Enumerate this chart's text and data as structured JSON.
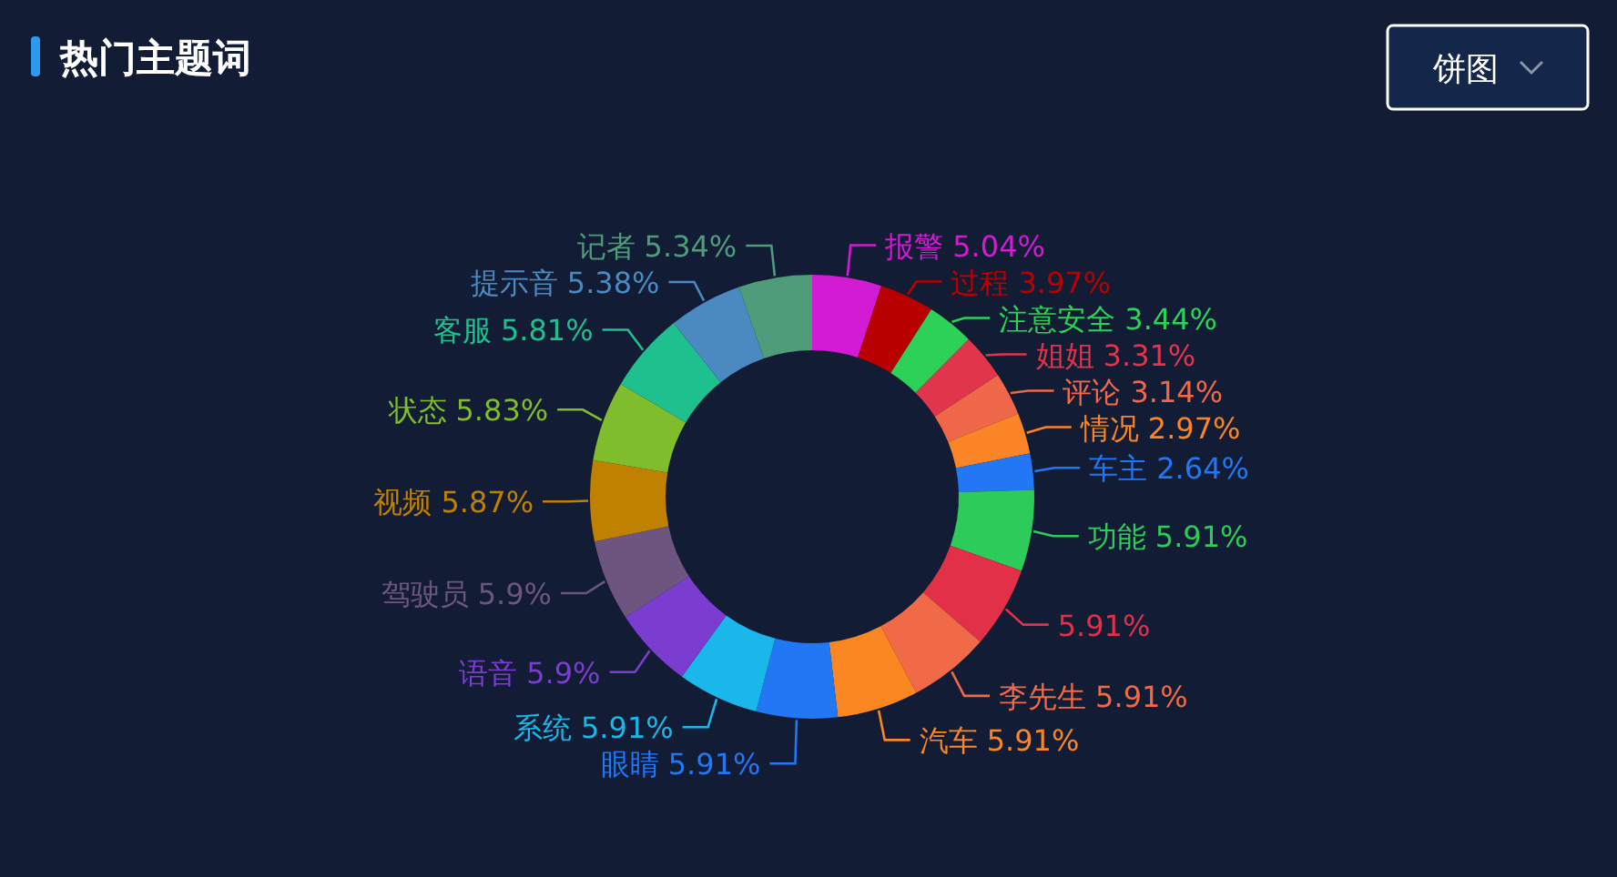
{
  "chart_data": {
    "type": "donut",
    "title": "热门主题词",
    "annotations": [
      "饼图"
    ],
    "value_labels": [
      "5.04%",
      "3.97%",
      "3.44%",
      "3.31%",
      "3.14%",
      "2.97%",
      "2.64%",
      "5.91%",
      "5.91%",
      "5.91%",
      "5.91%",
      "5.91%",
      "5.91%",
      "5.9%",
      "5.9%",
      "5.87%",
      "5.83%",
      "5.81%",
      "5.38%",
      "5.34%"
    ],
    "categories": [
      "报警",
      "过程",
      "注意安全",
      "姐姐",
      "评论",
      "情况",
      "车主",
      "功能",
      null,
      "李先生",
      "汽车",
      "眼睛",
      "系统",
      "语音",
      "驾驶员",
      "视频",
      "状态",
      "客服",
      "提示音",
      "记者"
    ],
    "values": [
      5.04,
      3.97,
      3.44,
      3.31,
      3.14,
      2.97,
      2.64,
      5.91,
      5.91,
      5.91,
      5.91,
      5.91,
      5.91,
      5.9,
      5.9,
      5.87,
      5.83,
      5.81,
      5.38,
      5.34
    ],
    "colors": [
      "#d21bd2",
      "#b80000",
      "#2ed158",
      "#e0354a",
      "#f0684a",
      "#fb8526",
      "#2277f5",
      "#2dcc5a",
      "#e23049",
      "#f06a48",
      "#fb8722",
      "#2277f5",
      "#1ab8ea",
      "#7b3dd0",
      "#6e5580",
      "#c08000",
      "#7fbd2c",
      "#1ec08e",
      "#4a8ac0",
      "#4f9c7a"
    ]
  }
}
